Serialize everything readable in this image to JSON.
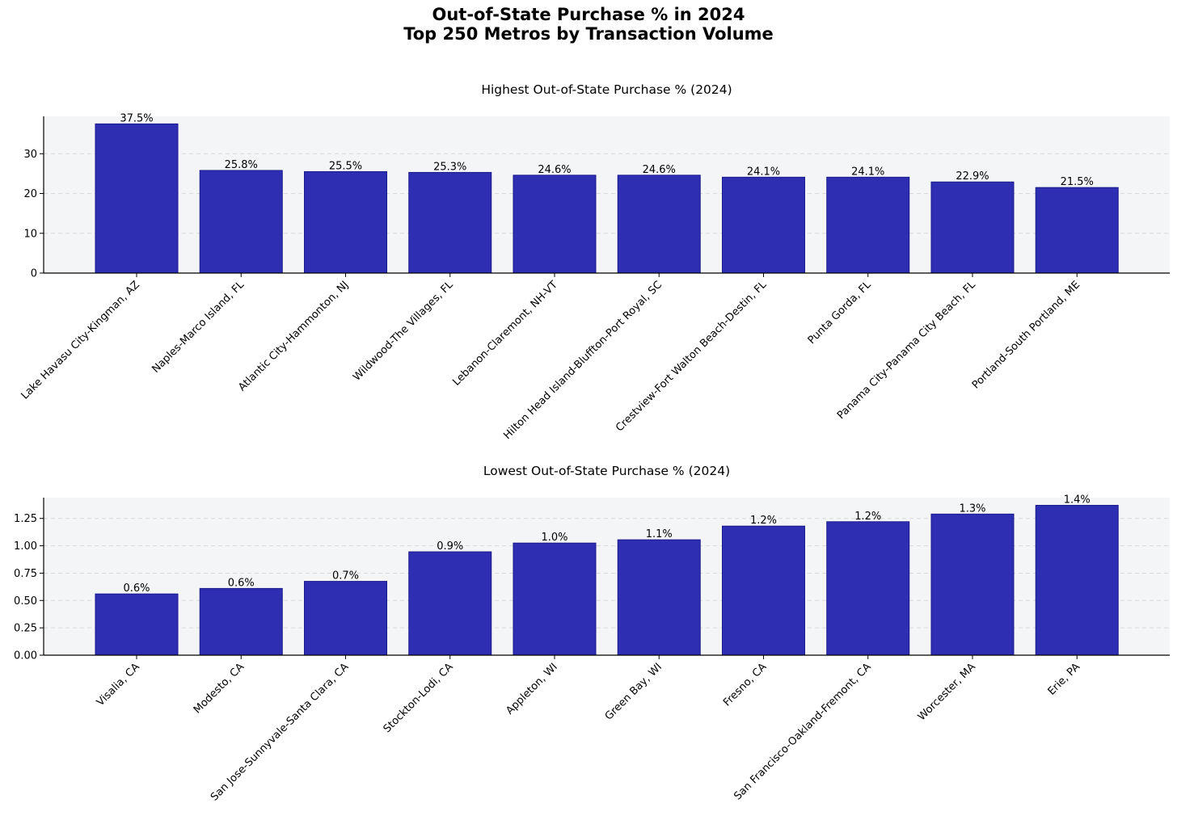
{
  "title_line1": "Out-of-State Purchase % in 2024",
  "title_line2": "Top 250 Metros by Transaction Volume",
  "colors": {
    "bar": "#2e2eb3",
    "bar_edge": "#1a1a8c",
    "plot_bg": "#f4f5f7",
    "grid": "#d9d9d9"
  },
  "chart_data": [
    {
      "type": "bar",
      "title": "Highest Out-of-State Purchase % (2024)",
      "xlabel": "",
      "ylabel": "",
      "ylim": [
        0,
        39.4
      ],
      "yticks": [
        0,
        10,
        20,
        30
      ],
      "ytick_labels": [
        "0",
        "10",
        "20",
        "30"
      ],
      "grid": "y-dashed",
      "categories": [
        "Lake Havasu City-Kingman, AZ",
        "Naples-Marco Island, FL",
        "Atlantic City-Hammonton, NJ",
        "Wildwood-The Villages, FL",
        "Lebanon-Claremont, NH-VT",
        "Hilton Head Island-Bluffton-Port Royal, SC",
        "Crestview-Fort Walton Beach-Destin, FL",
        "Punta Gorda, FL",
        "Panama City-Panama City Beach, FL",
        "Portland-South Portland, ME"
      ],
      "values": [
        37.5,
        25.8,
        25.5,
        25.3,
        24.6,
        24.6,
        24.1,
        24.1,
        22.9,
        21.5
      ],
      "data_labels": [
        "37.5%",
        "25.8%",
        "25.5%",
        "25.3%",
        "24.6%",
        "24.6%",
        "24.1%",
        "24.1%",
        "22.9%",
        "21.5%"
      ]
    },
    {
      "type": "bar",
      "title": "Lowest Out-of-State Purchase % (2024)",
      "xlabel": "",
      "ylabel": "",
      "ylim": [
        0,
        1.44
      ],
      "yticks": [
        0,
        0.25,
        0.5,
        0.75,
        1.0,
        1.25
      ],
      "ytick_labels": [
        "0.00",
        "0.25",
        "0.50",
        "0.75",
        "1.00",
        "1.25"
      ],
      "grid": "y-dashed",
      "categories": [
        "Visalia, CA",
        "Modesto, CA",
        "San Jose-Sunnyvale-Santa Clara, CA",
        "Stockton-Lodi, CA",
        "Appleton, WI",
        "Green Bay, WI",
        "Fresno, CA",
        "San Francisco-Oakland-Fremont, CA",
        "Worcester, MA",
        "Erie, PA"
      ],
      "values": [
        0.56,
        0.61,
        0.675,
        0.945,
        1.025,
        1.055,
        1.18,
        1.22,
        1.29,
        1.37
      ],
      "data_labels": [
        "0.6%",
        "0.6%",
        "0.7%",
        "0.9%",
        "1.0%",
        "1.1%",
        "1.2%",
        "1.2%",
        "1.3%",
        "1.4%"
      ]
    }
  ]
}
